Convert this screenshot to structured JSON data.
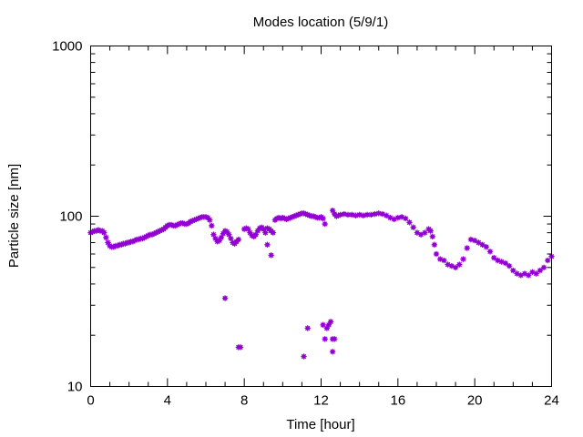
{
  "chart_data": {
    "type": "scatter",
    "title": "Modes location (5/9/1)",
    "xlabel": "Time [hour]",
    "ylabel": "Particle size [nm]",
    "xlim": [
      0,
      24
    ],
    "ylim": [
      10,
      1000
    ],
    "yscale": "log",
    "x_ticks": [
      0,
      4,
      8,
      12,
      16,
      20,
      24
    ],
    "x_tick_labels": [
      "0",
      "4",
      "8",
      "12",
      "16",
      "20",
      "24"
    ],
    "y_ticks": [
      10,
      100,
      1000
    ],
    "y_tick_labels": [
      "10",
      "100",
      "1000"
    ],
    "x_minor_step": 1,
    "grid": false,
    "legend": "none",
    "marker_color": "#9400d3",
    "series": [
      {
        "points": [
          [
            0.0,
            80
          ],
          [
            0.1,
            81
          ],
          [
            0.2,
            82
          ],
          [
            0.3,
            82
          ],
          [
            0.4,
            83
          ],
          [
            0.5,
            82
          ],
          [
            0.6,
            82
          ],
          [
            0.7,
            80
          ],
          [
            0.8,
            75
          ],
          [
            0.9,
            70
          ],
          [
            1.0,
            67
          ],
          [
            1.1,
            66
          ],
          [
            1.2,
            66
          ],
          [
            1.3,
            67
          ],
          [
            1.4,
            67
          ],
          [
            1.5,
            68
          ],
          [
            1.6,
            68
          ],
          [
            1.7,
            69
          ],
          [
            1.8,
            69
          ],
          [
            1.9,
            70
          ],
          [
            2.0,
            70
          ],
          [
            2.1,
            71
          ],
          [
            2.2,
            71
          ],
          [
            2.3,
            72
          ],
          [
            2.4,
            73
          ],
          [
            2.5,
            73
          ],
          [
            2.6,
            74
          ],
          [
            2.7,
            74
          ],
          [
            2.8,
            75
          ],
          [
            2.9,
            76
          ],
          [
            3.0,
            77
          ],
          [
            3.1,
            78
          ],
          [
            3.2,
            78
          ],
          [
            3.3,
            79
          ],
          [
            3.4,
            80
          ],
          [
            3.5,
            81
          ],
          [
            3.6,
            82
          ],
          [
            3.7,
            83
          ],
          [
            3.8,
            84
          ],
          [
            3.9,
            86
          ],
          [
            4.0,
            88
          ],
          [
            4.1,
            89
          ],
          [
            4.2,
            89
          ],
          [
            4.3,
            88
          ],
          [
            4.4,
            88
          ],
          [
            4.5,
            89
          ],
          [
            4.6,
            90
          ],
          [
            4.7,
            91
          ],
          [
            4.8,
            91
          ],
          [
            4.9,
            90
          ],
          [
            5.0,
            90
          ],
          [
            5.1,
            91
          ],
          [
            5.2,
            93
          ],
          [
            5.3,
            94
          ],
          [
            5.4,
            95
          ],
          [
            5.5,
            96
          ],
          [
            5.6,
            97
          ],
          [
            5.7,
            98
          ],
          [
            5.8,
            99
          ],
          [
            5.9,
            99
          ],
          [
            6.0,
            99
          ],
          [
            6.1,
            98
          ],
          [
            6.2,
            95
          ],
          [
            6.3,
            88
          ],
          [
            6.4,
            78
          ],
          [
            6.5,
            74
          ],
          [
            6.6,
            71
          ],
          [
            6.7,
            72
          ],
          [
            6.8,
            75
          ],
          [
            6.9,
            79
          ],
          [
            7.0,
            82
          ],
          [
            7.1,
            81
          ],
          [
            7.2,
            78
          ],
          [
            7.3,
            74
          ],
          [
            7.4,
            70
          ],
          [
            7.5,
            69
          ],
          [
            7.6,
            71
          ],
          [
            7.7,
            73
          ],
          [
            7.0,
            33
          ],
          [
            7.7,
            17
          ],
          [
            7.8,
            17
          ],
          [
            8.0,
            84
          ],
          [
            8.1,
            85
          ],
          [
            8.2,
            84
          ],
          [
            8.3,
            80
          ],
          [
            8.4,
            77
          ],
          [
            8.5,
            76
          ],
          [
            8.6,
            78
          ],
          [
            8.7,
            82
          ],
          [
            8.8,
            85
          ],
          [
            8.9,
            86
          ],
          [
            9.0,
            84
          ],
          [
            9.1,
            80
          ],
          [
            9.2,
            85
          ],
          [
            9.3,
            84
          ],
          [
            9.4,
            82
          ],
          [
            9.5,
            80
          ],
          [
            9.2,
            68
          ],
          [
            9.4,
            59
          ],
          [
            9.6,
            95
          ],
          [
            9.7,
            97
          ],
          [
            9.8,
            98
          ],
          [
            9.9,
            97
          ],
          [
            10.0,
            98
          ],
          [
            10.1,
            97
          ],
          [
            10.2,
            96
          ],
          [
            10.3,
            97
          ],
          [
            10.4,
            98
          ],
          [
            10.5,
            99
          ],
          [
            10.6,
            100
          ],
          [
            10.7,
            101
          ],
          [
            10.8,
            102
          ],
          [
            10.9,
            103
          ],
          [
            11.0,
            104
          ],
          [
            11.1,
            104
          ],
          [
            11.2,
            103
          ],
          [
            11.3,
            102
          ],
          [
            11.4,
            101
          ],
          [
            11.5,
            100
          ],
          [
            11.6,
            100
          ],
          [
            11.7,
            99
          ],
          [
            11.8,
            98
          ],
          [
            11.9,
            98
          ],
          [
            12.0,
            99
          ],
          [
            12.1,
            97
          ],
          [
            12.2,
            90
          ],
          [
            11.1,
            15
          ],
          [
            11.3,
            22
          ],
          [
            12.1,
            23
          ],
          [
            12.2,
            19
          ],
          [
            12.3,
            22
          ],
          [
            12.4,
            23
          ],
          [
            12.5,
            24
          ],
          [
            12.6,
            19
          ],
          [
            12.7,
            19
          ],
          [
            12.6,
            16
          ],
          [
            12.6,
            108
          ],
          [
            12.7,
            103
          ],
          [
            12.8,
            100
          ],
          [
            12.9,
            101
          ],
          [
            13.0,
            102
          ],
          [
            13.2,
            103
          ],
          [
            13.4,
            102
          ],
          [
            13.6,
            102
          ],
          [
            13.8,
            101
          ],
          [
            14.0,
            102
          ],
          [
            14.2,
            101
          ],
          [
            14.4,
            102
          ],
          [
            14.6,
            102
          ],
          [
            14.8,
            103
          ],
          [
            15.0,
            104
          ],
          [
            15.2,
            103
          ],
          [
            15.4,
            101
          ],
          [
            15.6,
            98
          ],
          [
            15.8,
            96
          ],
          [
            16.0,
            98
          ],
          [
            16.2,
            99
          ],
          [
            16.4,
            97
          ],
          [
            16.6,
            92
          ],
          [
            16.8,
            86
          ],
          [
            17.0,
            80
          ],
          [
            17.2,
            78
          ],
          [
            17.4,
            80
          ],
          [
            17.6,
            84
          ],
          [
            17.7,
            82
          ],
          [
            17.8,
            76
          ],
          [
            17.9,
            68
          ],
          [
            18.0,
            60
          ],
          [
            18.2,
            56
          ],
          [
            18.4,
            55
          ],
          [
            18.6,
            52
          ],
          [
            18.8,
            51
          ],
          [
            19.0,
            50
          ],
          [
            19.2,
            52
          ],
          [
            19.4,
            56
          ],
          [
            19.6,
            65
          ],
          [
            19.8,
            73
          ],
          [
            20.0,
            72
          ],
          [
            20.2,
            70
          ],
          [
            20.4,
            68
          ],
          [
            20.6,
            66
          ],
          [
            20.8,
            62
          ],
          [
            21.0,
            57
          ],
          [
            21.2,
            55
          ],
          [
            21.4,
            54
          ],
          [
            21.6,
            53
          ],
          [
            21.8,
            51
          ],
          [
            22.0,
            48
          ],
          [
            22.2,
            46
          ],
          [
            22.4,
            45
          ],
          [
            22.6,
            46
          ],
          [
            22.8,
            45
          ],
          [
            23.0,
            47
          ],
          [
            23.2,
            46
          ],
          [
            23.4,
            48
          ],
          [
            23.6,
            50
          ],
          [
            23.8,
            55
          ],
          [
            24.0,
            58
          ]
        ]
      }
    ]
  }
}
